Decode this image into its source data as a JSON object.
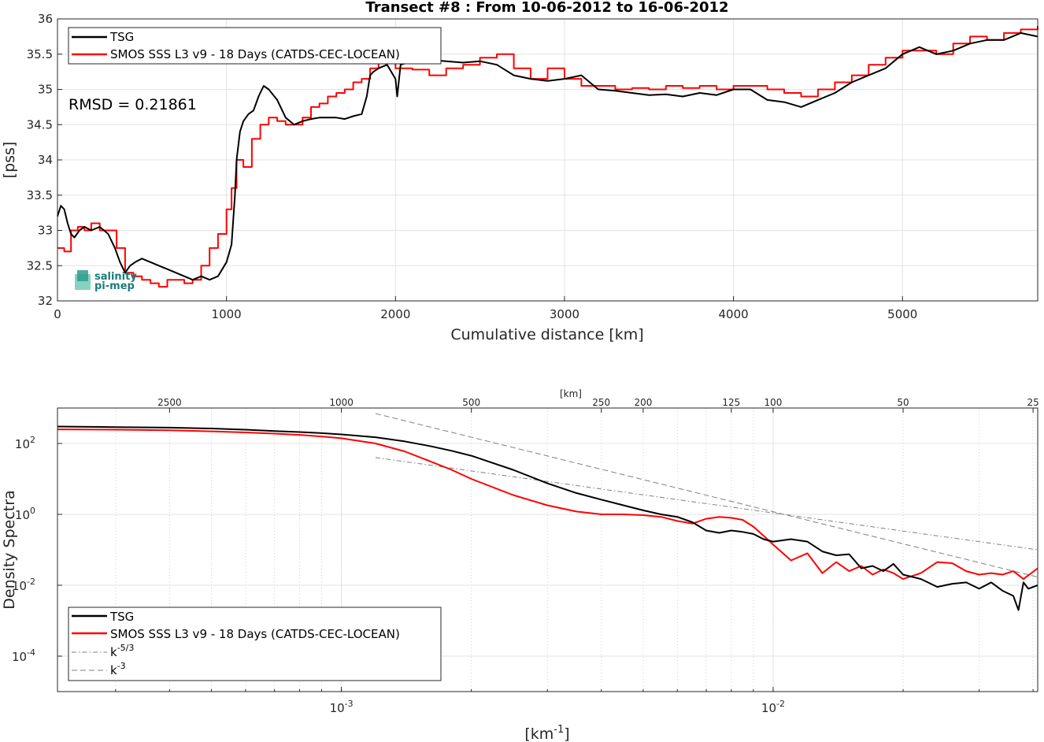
{
  "chart_data": [
    {
      "type": "line",
      "title": "Transect #8 : From 10-06-2012 to 16-06-2012",
      "xlabel": "Cumulative distance [km]",
      "ylabel": "[pss]",
      "xlim": [
        0,
        5800
      ],
      "ylim": [
        32,
        36
      ],
      "xticks": [
        0,
        1000,
        2000,
        3000,
        4000,
        5000
      ],
      "yticks": [
        32,
        32.5,
        33,
        33.5,
        34,
        34.5,
        35,
        35.5,
        36
      ],
      "ytick_labels": [
        "32",
        "32.5",
        "33",
        "33.5",
        "34",
        "34.5",
        "35",
        "35.5",
        "36"
      ],
      "grid": true,
      "legend_position": "top-left",
      "annotation": "RMSD = 0.21861",
      "logo_text": [
        "salinity",
        "pi-mep"
      ],
      "series": [
        {
          "name": "TSG",
          "color": "#000000",
          "x": [
            0,
            20,
            40,
            60,
            80,
            100,
            130,
            160,
            200,
            250,
            300,
            340,
            370,
            400,
            430,
            460,
            500,
            550,
            600,
            650,
            700,
            750,
            800,
            850,
            900,
            950,
            1000,
            1030,
            1050,
            1060,
            1080,
            1100,
            1130,
            1160,
            1190,
            1220,
            1250,
            1300,
            1350,
            1400,
            1450,
            1500,
            1550,
            1600,
            1650,
            1700,
            1750,
            1800,
            1830,
            1850,
            1870,
            1900,
            1950,
            2000,
            2010,
            2030,
            2100,
            2200,
            2300,
            2400,
            2500,
            2600,
            2700,
            2800,
            2900,
            3000,
            3100,
            3200,
            3300,
            3400,
            3500,
            3600,
            3700,
            3800,
            3900,
            4000,
            4100,
            4200,
            4300,
            4400,
            4500,
            4600,
            4700,
            4800,
            4900,
            5000,
            5100,
            5200,
            5300,
            5400,
            5500,
            5600,
            5700,
            5800
          ],
          "y": [
            33.2,
            33.35,
            33.3,
            33.1,
            32.95,
            32.9,
            33.0,
            33.05,
            33.0,
            33.05,
            32.95,
            32.75,
            32.55,
            32.4,
            32.5,
            32.55,
            32.6,
            32.55,
            32.5,
            32.45,
            32.4,
            32.35,
            32.3,
            32.35,
            32.3,
            32.35,
            32.55,
            32.8,
            33.5,
            34.0,
            34.4,
            34.55,
            34.65,
            34.7,
            34.9,
            35.05,
            35.0,
            34.85,
            34.6,
            34.5,
            34.55,
            34.58,
            34.6,
            34.6,
            34.6,
            34.58,
            34.62,
            34.65,
            34.9,
            35.2,
            35.25,
            35.3,
            35.35,
            35.15,
            34.9,
            35.35,
            35.4,
            35.42,
            35.4,
            35.38,
            35.4,
            35.35,
            35.2,
            35.15,
            35.12,
            35.15,
            35.2,
            35.0,
            34.98,
            34.95,
            34.92,
            34.93,
            34.9,
            34.95,
            34.92,
            35.0,
            35.0,
            34.85,
            34.82,
            34.75,
            34.85,
            34.95,
            35.1,
            35.2,
            35.3,
            35.5,
            35.6,
            35.5,
            35.55,
            35.65,
            35.7,
            35.7,
            35.8,
            35.75
          ]
        },
        {
          "name": "SMOS SSS L3 v9 - 18 Days (CATDS-CEC-LOCEAN)",
          "color": "#ff0000",
          "x": [
            0,
            40,
            80,
            120,
            160,
            200,
            250,
            300,
            350,
            400,
            450,
            500,
            550,
            600,
            650,
            700,
            750,
            800,
            850,
            900,
            950,
            1000,
            1030,
            1060,
            1100,
            1150,
            1200,
            1250,
            1300,
            1350,
            1400,
            1450,
            1500,
            1550,
            1600,
            1650,
            1700,
            1750,
            1800,
            1850,
            1900,
            2000,
            2100,
            2200,
            2300,
            2400,
            2500,
            2600,
            2700,
            2800,
            2900,
            3000,
            3100,
            3200,
            3300,
            3400,
            3500,
            3600,
            3700,
            3800,
            3900,
            4000,
            4100,
            4200,
            4300,
            4400,
            4500,
            4600,
            4700,
            4800,
            4900,
            5000,
            5100,
            5200,
            5300,
            5400,
            5500,
            5600,
            5700,
            5800
          ],
          "y": [
            32.75,
            32.7,
            33.0,
            33.05,
            33.0,
            33.1,
            33.0,
            33.0,
            32.75,
            32.4,
            32.35,
            32.3,
            32.25,
            32.2,
            32.3,
            32.3,
            32.25,
            32.3,
            32.5,
            32.75,
            32.95,
            33.3,
            33.6,
            34.0,
            33.9,
            34.3,
            34.5,
            34.6,
            34.55,
            34.5,
            34.5,
            34.6,
            34.75,
            34.8,
            34.9,
            34.95,
            35.0,
            35.1,
            35.15,
            35.3,
            35.4,
            35.3,
            35.28,
            35.2,
            35.3,
            35.35,
            35.45,
            35.5,
            35.3,
            35.15,
            35.3,
            35.15,
            35.05,
            35.05,
            35.0,
            35.02,
            35.0,
            35.05,
            35.02,
            35.05,
            35.0,
            35.05,
            35.05,
            35.0,
            34.95,
            34.9,
            35.0,
            35.1,
            35.2,
            35.35,
            35.45,
            35.55,
            35.55,
            35.5,
            35.65,
            35.75,
            35.7,
            35.8,
            35.85,
            35.9
          ]
        }
      ]
    },
    {
      "type": "line",
      "title": "",
      "xlabel": "[km$^{-1}$]",
      "xlabel_main": "[km",
      "xlabel_sup": "-1",
      "xlabel_end": "]",
      "ylabel": "Density Spectra",
      "x_scale": "log",
      "y_scale": "log",
      "xlim": [
        0.00022,
        0.041
      ],
      "ylim": [
        1e-05,
        1000
      ],
      "xticks": [
        0.001,
        0.01
      ],
      "xtick_labels": [
        {
          "base": "10",
          "exp": "-3"
        },
        {
          "base": "10",
          "exp": "-2"
        }
      ],
      "yticks": [
        0.0001,
        0.01,
        1,
        100
      ],
      "ytick_labels": [
        {
          "base": "10",
          "exp": "-4"
        },
        {
          "base": "10",
          "exp": "-2"
        },
        {
          "base": "10",
          "exp": "0"
        },
        {
          "base": "10",
          "exp": "2"
        }
      ],
      "top_axis_label": "[km]",
      "top_ticks": [
        2500,
        1000,
        500,
        250,
        200,
        125,
        100,
        50,
        25
      ],
      "top_tick_labels": [
        "2500",
        "1000",
        "500",
        "250",
        "200",
        "125",
        "100",
        "50",
        "25"
      ],
      "grid": true,
      "legend_position": "bottom-left",
      "series": [
        {
          "name": "TSG",
          "color": "#000000",
          "x": [
            0.00022,
            0.0003,
            0.0004,
            0.0005,
            0.0006,
            0.0007,
            0.0008,
            0.0009,
            0.001,
            0.0012,
            0.0014,
            0.0016,
            0.0018,
            0.002,
            0.0025,
            0.003,
            0.0035,
            0.004,
            0.0045,
            0.005,
            0.0055,
            0.006,
            0.0065,
            0.007,
            0.0075,
            0.008,
            0.0085,
            0.009,
            0.0095,
            0.01,
            0.011,
            0.012,
            0.013,
            0.014,
            0.015,
            0.016,
            0.017,
            0.018,
            0.019,
            0.02,
            0.022,
            0.024,
            0.026,
            0.028,
            0.03,
            0.032,
            0.034,
            0.036,
            0.037,
            0.038,
            0.039,
            0.041
          ],
          "y": [
            300,
            290,
            280,
            265,
            245,
            225,
            210,
            195,
            180,
            150,
            115,
            85,
            62,
            45,
            18,
            7.5,
            4.0,
            2.6,
            1.8,
            1.3,
            1.0,
            0.85,
            0.6,
            0.35,
            0.3,
            0.35,
            0.32,
            0.28,
            0.2,
            0.17,
            0.2,
            0.17,
            0.09,
            0.07,
            0.075,
            0.03,
            0.035,
            0.025,
            0.04,
            0.02,
            0.015,
            0.009,
            0.011,
            0.012,
            0.008,
            0.012,
            0.007,
            0.005,
            0.002,
            0.012,
            0.008,
            0.01
          ]
        },
        {
          "name": "SMOS SSS L3 v9 - 18 Days (CATDS-CEC-LOCEAN)",
          "color": "#ff0000",
          "x": [
            0.00022,
            0.0003,
            0.0004,
            0.0005,
            0.0006,
            0.0007,
            0.0008,
            0.0009,
            0.001,
            0.0012,
            0.0014,
            0.0016,
            0.0018,
            0.002,
            0.0025,
            0.003,
            0.0035,
            0.004,
            0.0045,
            0.005,
            0.0055,
            0.006,
            0.0065,
            0.007,
            0.0075,
            0.008,
            0.0085,
            0.009,
            0.0095,
            0.01,
            0.011,
            0.012,
            0.013,
            0.014,
            0.015,
            0.016,
            0.017,
            0.018,
            0.019,
            0.02,
            0.022,
            0.024,
            0.026,
            0.028,
            0.03,
            0.032,
            0.034,
            0.036,
            0.038,
            0.041
          ],
          "y": [
            250,
            245,
            235,
            220,
            205,
            190,
            175,
            158,
            140,
            100,
            60,
            32,
            18,
            10,
            3.5,
            1.8,
            1.2,
            1.0,
            1.0,
            0.95,
            0.85,
            0.65,
            0.55,
            0.75,
            0.85,
            0.8,
            0.7,
            0.45,
            0.25,
            0.14,
            0.05,
            0.08,
            0.022,
            0.045,
            0.025,
            0.035,
            0.02,
            0.028,
            0.022,
            0.015,
            0.022,
            0.045,
            0.042,
            0.025,
            0.02,
            0.022,
            0.02,
            0.025,
            0.015,
            0.03
          ]
        },
        {
          "name": "k^-5/3",
          "name_main": "k",
          "name_sup": "-5/3",
          "color": "#808080",
          "dash": "dashdot",
          "x": [
            0.0012,
            0.041
          ],
          "y": [
            40,
            0.1
          ]
        },
        {
          "name": "k^-3",
          "name_main": "k",
          "name_sup": "-3",
          "color": "#808080",
          "dash": "dashed",
          "x": [
            0.0012,
            0.041
          ],
          "y": [
            700,
            0.017
          ]
        }
      ]
    }
  ]
}
